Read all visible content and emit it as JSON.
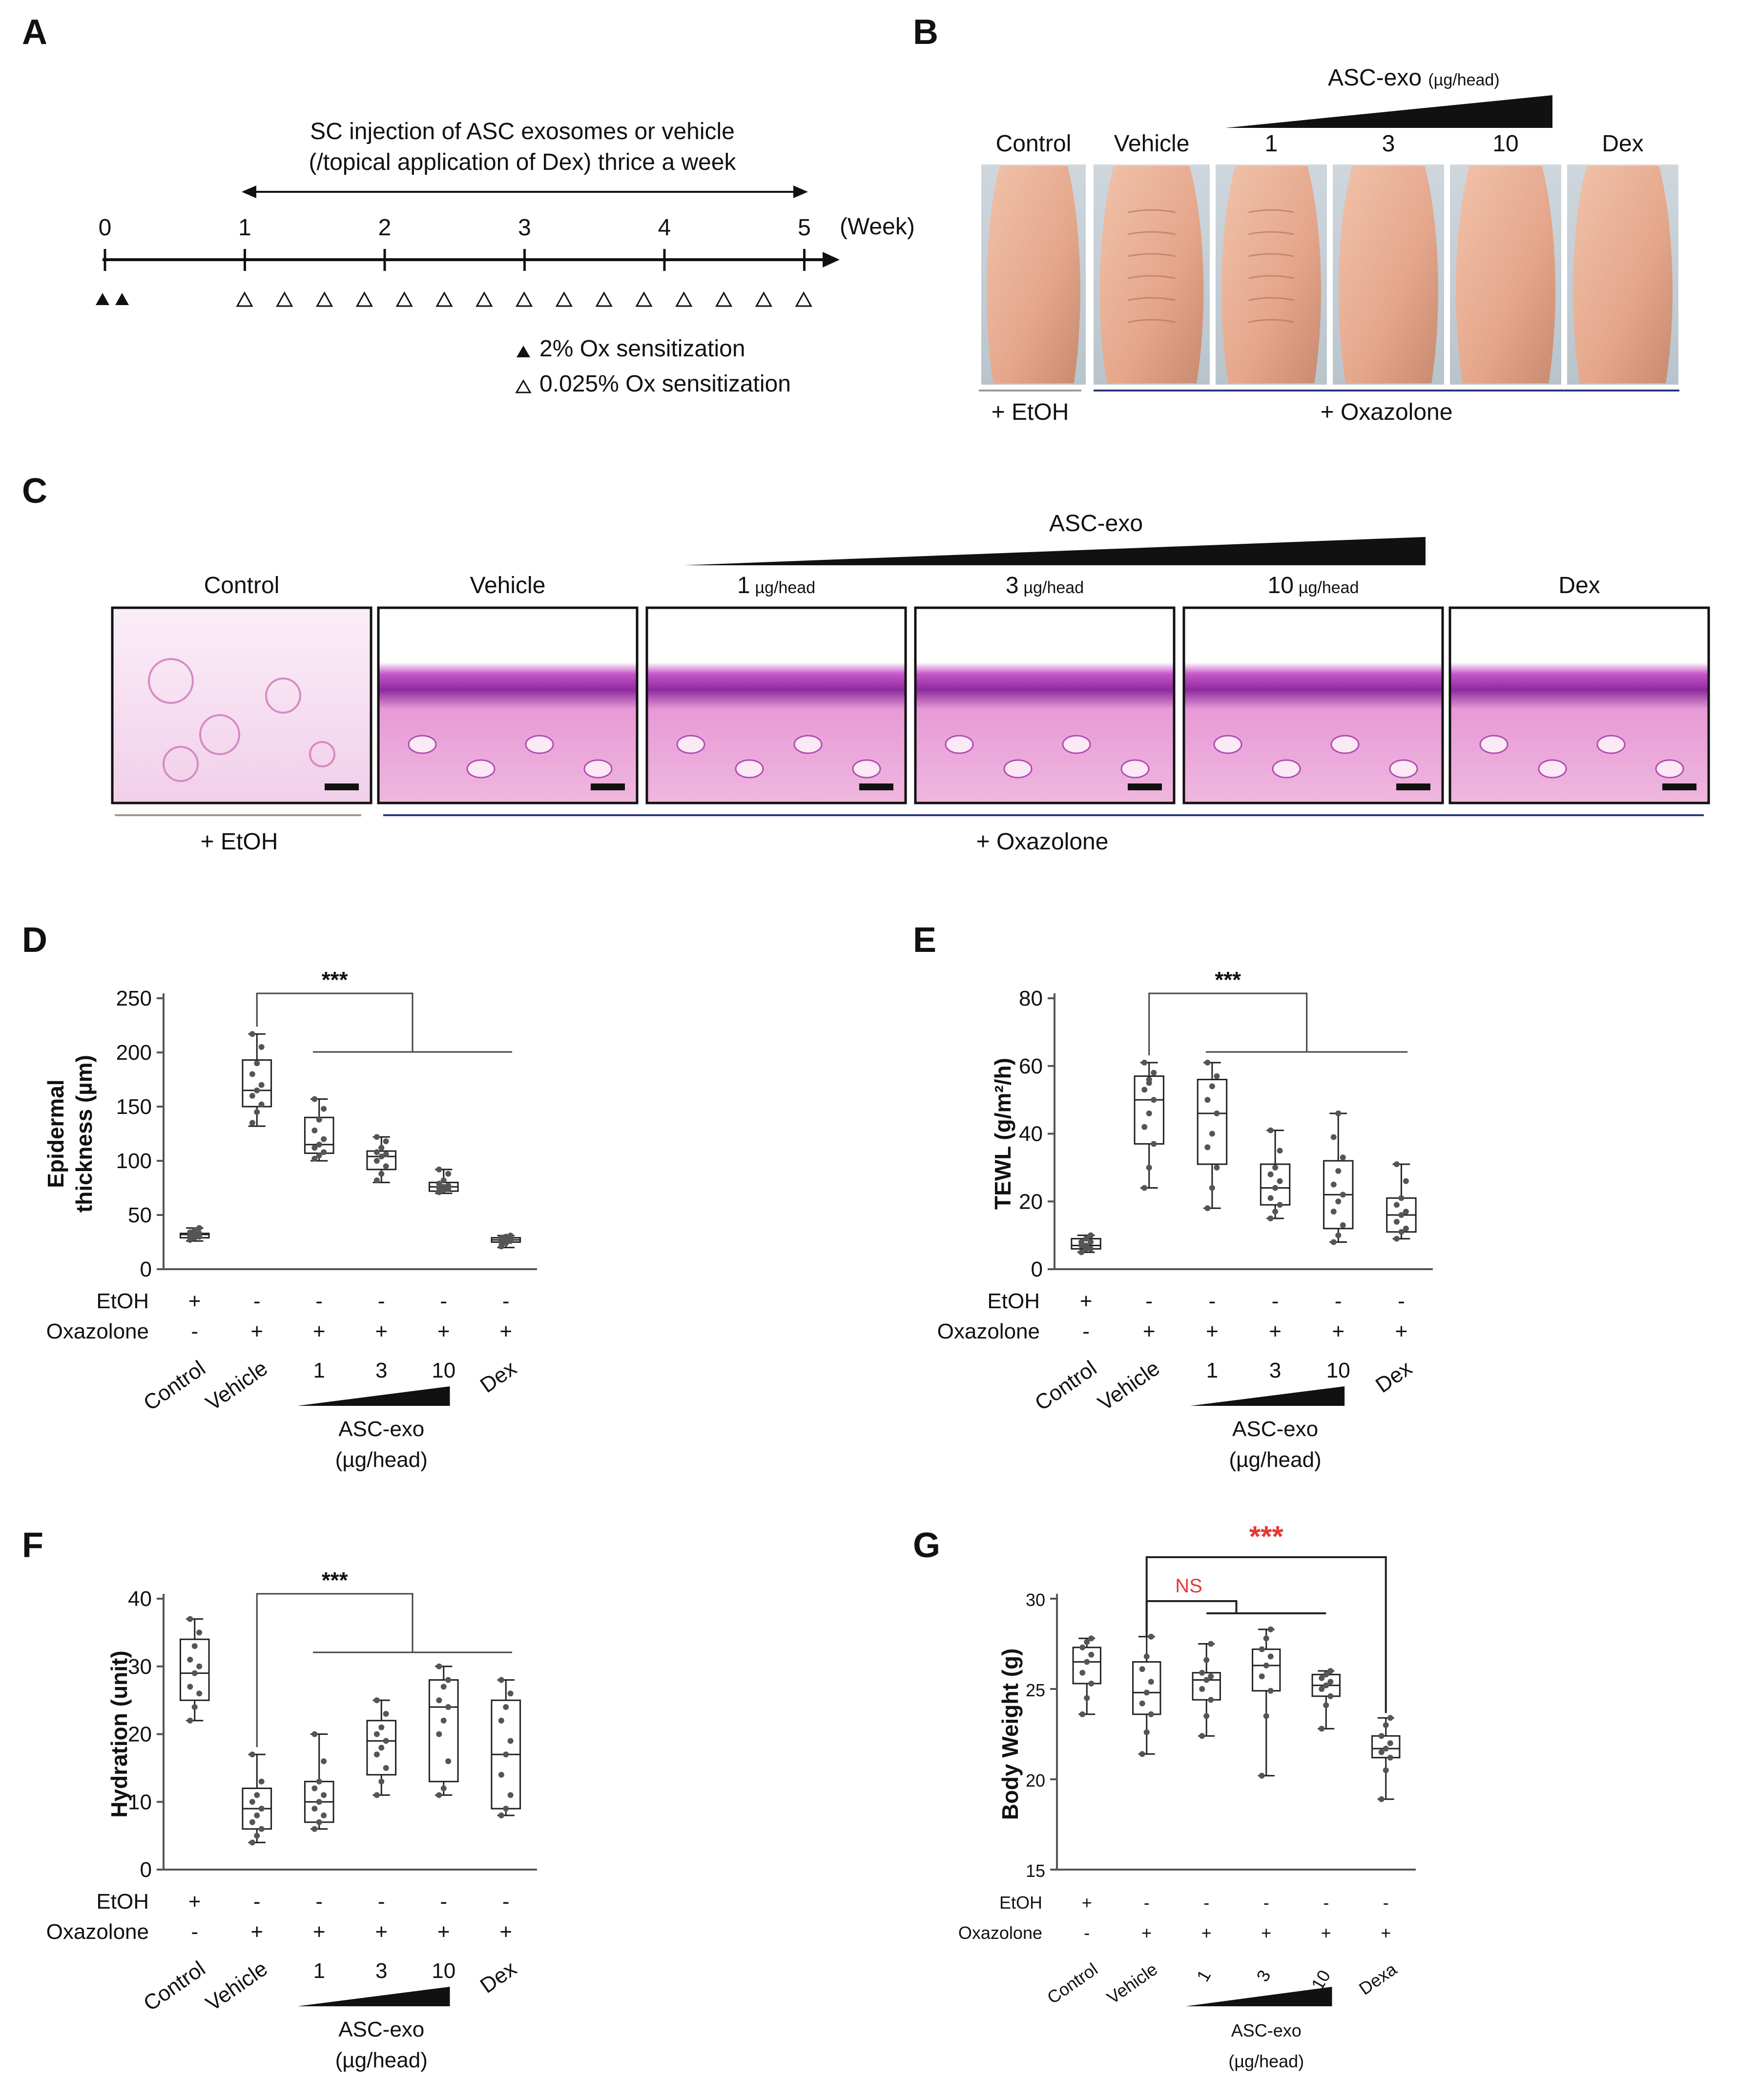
{
  "panels": {
    "A": {
      "letter": "A",
      "title_line1": "SC injection of ASC exosomes or vehicle",
      "title_line2": "(/topical application of Dex) thrice a week",
      "week_ticks": [
        "0",
        "1",
        "2",
        "3",
        "4",
        "5"
      ],
      "week_unit": "(Week)",
      "legend_filled": "2% Ox sensitization",
      "legend_open": "0.025% Ox sensitization"
    },
    "B": {
      "letter": "B",
      "gradient_label": "ASC-exo",
      "gradient_unit": "(µg/head)",
      "columns": [
        "Control",
        "Vehicle",
        "1",
        "3",
        "10",
        "Dex"
      ],
      "group_left": "+ EtOH",
      "group_right": "+ Oxazolone"
    },
    "C": {
      "letter": "C",
      "gradient_label": "ASC-exo",
      "columns": [
        {
          "main": "Control",
          "unit": ""
        },
        {
          "main": "Vehicle",
          "unit": ""
        },
        {
          "main": "1",
          "unit": "µg/head"
        },
        {
          "main": "3",
          "unit": "µg/head"
        },
        {
          "main": "10",
          "unit": "µg/head"
        },
        {
          "main": "Dex",
          "unit": ""
        }
      ],
      "group_left": "+ EtOH",
      "group_right": "+ Oxazolone"
    },
    "D": {
      "letter": "D"
    },
    "E": {
      "letter": "E"
    },
    "F": {
      "letter": "F"
    },
    "G": {
      "letter": "G"
    }
  },
  "colors": {
    "skin": "#e7ad93",
    "skin_dark": "#c98a70",
    "he_pink": "#e8a8d8",
    "he_purple": "#8a2a9a",
    "he_light": "#f4dcef",
    "bracket_blue": "#2a3580",
    "significance_red": "#e53935"
  },
  "chart_data": [
    {
      "panel": "D",
      "type": "box",
      "ylabel_line1": "Epidermal",
      "ylabel_line2": "thickness (µm)",
      "ylim": [
        0,
        250
      ],
      "yticks": [
        0,
        50,
        100,
        150,
        200,
        250
      ],
      "categories": [
        "Control",
        "Vehicle",
        "1",
        "3",
        "10",
        "Dex"
      ],
      "etoh_label": "EtOH",
      "etoh": [
        "+",
        "-",
        "-",
        "-",
        "-",
        "-"
      ],
      "oxazolone_label": "Oxazolone",
      "oxazolone": [
        "-",
        "+",
        "+",
        "+",
        "+",
        "+"
      ],
      "gradient_label_line1": "ASC-exo",
      "gradient_label_line2": "(µg/head)",
      "significance": "***",
      "boxes": [
        {
          "min": 26,
          "q1": 29,
          "median": 32,
          "q3": 33,
          "max": 38,
          "points": [
            27,
            29,
            30,
            31,
            32,
            33,
            34,
            36,
            38,
            31
          ]
        },
        {
          "min": 132,
          "q1": 150,
          "median": 165,
          "q3": 193,
          "max": 217,
          "points": [
            135,
            145,
            152,
            160,
            165,
            170,
            180,
            190,
            205,
            217
          ]
        },
        {
          "min": 100,
          "q1": 107,
          "median": 115,
          "q3": 140,
          "max": 157,
          "points": [
            102,
            105,
            108,
            112,
            115,
            120,
            128,
            138,
            148,
            157
          ]
        },
        {
          "min": 80,
          "q1": 92,
          "median": 104,
          "q3": 109,
          "max": 122,
          "points": [
            82,
            88,
            95,
            100,
            104,
            106,
            108,
            112,
            118,
            122
          ]
        },
        {
          "min": 70,
          "q1": 72,
          "median": 76,
          "q3": 80,
          "max": 92,
          "points": [
            71,
            73,
            74,
            75,
            76,
            77,
            79,
            82,
            88,
            92
          ]
        },
        {
          "min": 20,
          "q1": 25,
          "median": 27,
          "q3": 29,
          "max": 31,
          "points": [
            21,
            24,
            26,
            27,
            27,
            28,
            29,
            30,
            31,
            25
          ]
        }
      ]
    },
    {
      "panel": "E",
      "type": "box",
      "ylabel": "TEWL (g/m²/h)",
      "ylim": [
        0,
        80
      ],
      "yticks": [
        0,
        20,
        40,
        60,
        80
      ],
      "categories": [
        "Control",
        "Vehicle",
        "1",
        "3",
        "10",
        "Dex"
      ],
      "etoh_label": "EtOH",
      "etoh": [
        "+",
        "-",
        "-",
        "-",
        "-",
        "-"
      ],
      "oxazolone_label": "Oxazolone",
      "oxazolone": [
        "-",
        "+",
        "+",
        "+",
        "+",
        "+"
      ],
      "gradient_label_line1": "ASC-exo",
      "gradient_label_line2": "(µg/head)",
      "significance": "***",
      "boxes": [
        {
          "min": 5,
          "q1": 6,
          "median": 7,
          "q3": 9,
          "max": 10,
          "points": [
            5,
            6,
            6,
            7,
            7,
            8,
            8,
            9,
            10,
            7
          ]
        },
        {
          "min": 24,
          "q1": 37,
          "median": 50,
          "q3": 57,
          "max": 61,
          "points": [
            24,
            30,
            37,
            42,
            46,
            50,
            53,
            56,
            58,
            61,
            55
          ]
        },
        {
          "min": 18,
          "q1": 31,
          "median": 46,
          "q3": 56,
          "max": 61,
          "points": [
            18,
            24,
            30,
            36,
            40,
            46,
            50,
            54,
            57,
            61
          ]
        },
        {
          "min": 15,
          "q1": 19,
          "median": 24,
          "q3": 31,
          "max": 41,
          "points": [
            15,
            17,
            19,
            21,
            24,
            26,
            28,
            30,
            35,
            41
          ]
        },
        {
          "min": 8,
          "q1": 12,
          "median": 22,
          "q3": 32,
          "max": 46,
          "points": [
            8,
            10,
            13,
            17,
            20,
            22,
            25,
            29,
            33,
            39,
            46
          ]
        },
        {
          "min": 9,
          "q1": 11,
          "median": 16,
          "q3": 21,
          "max": 31,
          "points": [
            9,
            11,
            12,
            14,
            16,
            17,
            19,
            21,
            26,
            31
          ]
        }
      ]
    },
    {
      "panel": "F",
      "type": "box",
      "ylabel": "Hydration (unit)",
      "ylim": [
        0,
        40
      ],
      "yticks": [
        0,
        10,
        20,
        30,
        40
      ],
      "categories": [
        "Control",
        "Vehicle",
        "1",
        "3",
        "10",
        "Dex"
      ],
      "etoh_label": "EtOH",
      "etoh": [
        "+",
        "-",
        "-",
        "-",
        "-",
        "-"
      ],
      "oxazolone_label": "Oxazolone",
      "oxazolone": [
        "-",
        "+",
        "+",
        "+",
        "+",
        "+"
      ],
      "gradient_label_line1": "ASC-exo",
      "gradient_label_line2": "(µg/head)",
      "significance": "***",
      "boxes": [
        {
          "min": 22,
          "q1": 25,
          "median": 29,
          "q3": 34,
          "max": 37,
          "points": [
            22,
            24,
            26,
            27,
            29,
            30,
            31,
            33,
            35,
            37
          ]
        },
        {
          "min": 4,
          "q1": 6,
          "median": 9,
          "q3": 12,
          "max": 17,
          "points": [
            4,
            5,
            6,
            7,
            8,
            9,
            10,
            11,
            13,
            17
          ]
        },
        {
          "min": 6,
          "q1": 7,
          "median": 10,
          "q3": 13,
          "max": 20,
          "points": [
            6,
            7,
            8,
            9,
            10,
            11,
            12,
            13,
            16,
            20
          ]
        },
        {
          "min": 11,
          "q1": 14,
          "median": 19,
          "q3": 22,
          "max": 25,
          "points": [
            11,
            13,
            15,
            17,
            18,
            19,
            20,
            21,
            23,
            25
          ]
        },
        {
          "min": 11,
          "q1": 13,
          "median": 24,
          "q3": 28,
          "max": 30,
          "points": [
            11,
            12,
            16,
            20,
            22,
            24,
            25,
            27,
            28,
            30
          ]
        },
        {
          "min": 8,
          "q1": 9,
          "median": 17,
          "q3": 25,
          "max": 28,
          "points": [
            8,
            9,
            11,
            14,
            17,
            19,
            22,
            24,
            26,
            28
          ]
        }
      ]
    },
    {
      "panel": "G",
      "type": "box",
      "ylabel": "Body Weight (g)",
      "ylim": [
        15,
        30
      ],
      "yticks": [
        15,
        20,
        25,
        30
      ],
      "categories": [
        "Control",
        "Vehicle",
        "1",
        "3",
        "10",
        "Dexa"
      ],
      "etoh_label": "EtOH",
      "etoh": [
        "+",
        "-",
        "-",
        "-",
        "-",
        "-"
      ],
      "oxazolone_label": "Oxazolone",
      "oxazolone": [
        "-",
        "+",
        "+",
        "+",
        "+",
        "+"
      ],
      "gradient_label_line1": "ASC-exo",
      "gradient_label_line2": "(µg/head)",
      "significance": "***",
      "ns_label": "NS",
      "boxes": [
        {
          "min": 23.6,
          "q1": 25.3,
          "median": 26.5,
          "q3": 27.3,
          "max": 27.8,
          "points": [
            23.6,
            24.5,
            25.3,
            25.9,
            26.5,
            26.9,
            27.3,
            27.6,
            27.8
          ]
        },
        {
          "min": 21.4,
          "q1": 23.6,
          "median": 24.8,
          "q3": 26.5,
          "max": 27.9,
          "points": [
            21.4,
            22.6,
            23.6,
            24.2,
            24.8,
            25.4,
            26.1,
            26.8,
            27.9
          ]
        },
        {
          "min": 22.4,
          "q1": 24.4,
          "median": 25.5,
          "q3": 25.9,
          "max": 27.5,
          "points": [
            22.4,
            23.5,
            24.4,
            25.0,
            25.5,
            25.7,
            25.9,
            26.6,
            27.5
          ]
        },
        {
          "min": 20.2,
          "q1": 24.9,
          "median": 26.3,
          "q3": 27.2,
          "max": 28.3,
          "points": [
            20.2,
            23.5,
            24.9,
            25.7,
            26.3,
            26.8,
            27.2,
            27.8,
            28.3
          ]
        },
        {
          "min": 22.8,
          "q1": 24.6,
          "median": 25.2,
          "q3": 25.8,
          "max": 26.0,
          "points": [
            22.8,
            24.1,
            24.6,
            25.0,
            25.2,
            25.4,
            25.6,
            25.8,
            26.0
          ]
        },
        {
          "min": 18.9,
          "q1": 21.2,
          "median": 21.7,
          "q3": 22.4,
          "max": 23.4,
          "points": [
            18.9,
            20.5,
            21.2,
            21.5,
            21.7,
            22.0,
            22.4,
            23.0,
            23.4
          ]
        }
      ]
    }
  ]
}
